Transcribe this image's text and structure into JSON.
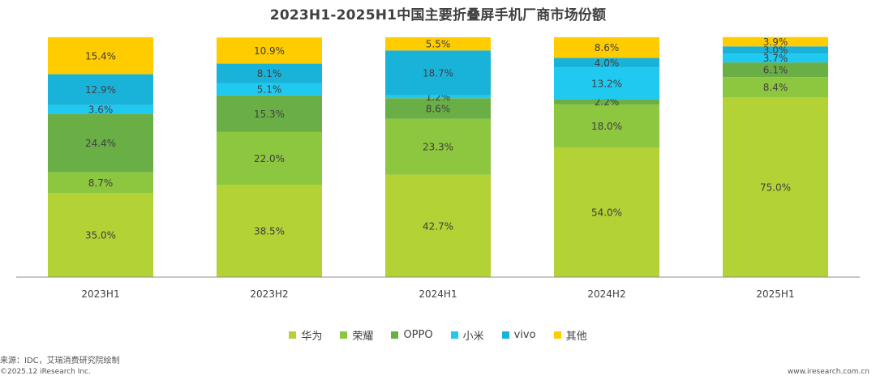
{
  "chart_data": {
    "type": "bar",
    "stacked": true,
    "title": "2023H1-2025H1中国主要折叠屏手机厂商市场份额",
    "categories": [
      "2023H1",
      "2023H2",
      "2024H1",
      "2024H2",
      "2025H1"
    ],
    "series": [
      {
        "name": "华为",
        "color": "#B2D235",
        "values": [
          35.0,
          38.5,
          42.7,
          54.0,
          75.0
        ],
        "labels": [
          "35.0%",
          "38.5%",
          "42.7%",
          "54.0%",
          "75.0%"
        ]
      },
      {
        "name": "荣耀",
        "color": "#8DC63F",
        "values": [
          8.7,
          22.0,
          23.3,
          18.0,
          8.4
        ],
        "labels": [
          "8.7%",
          "22.0%",
          "23.3%",
          "18.0%",
          "8.4%"
        ]
      },
      {
        "name": "OPPO",
        "color": "#6AAF46",
        "values": [
          24.4,
          15.3,
          8.6,
          2.2,
          6.1
        ],
        "labels": [
          "24.4%",
          "15.3%",
          "8.6%",
          "2.2%",
          "6.1%"
        ]
      },
      {
        "name": "小米",
        "color": "#1FC9EF",
        "values": [
          3.6,
          5.1,
          1.2,
          13.2,
          3.7
        ],
        "labels": [
          "3.6%",
          "5.1%",
          "1.2%",
          "13.2%",
          "3.7%"
        ]
      },
      {
        "name": "vivo",
        "color": "#19B3DA",
        "values": [
          12.9,
          8.1,
          18.7,
          4.0,
          3.0
        ],
        "labels": [
          "12.9%",
          "8.1%",
          "18.7%",
          "4.0%",
          "3.0%"
        ]
      },
      {
        "name": "其他",
        "color": "#FFCC00",
        "values": [
          15.4,
          10.9,
          5.5,
          8.6,
          3.9
        ],
        "labels": [
          "15.4%",
          "10.9%",
          "5.5%",
          "8.6%",
          "3.9%"
        ]
      }
    ],
    "ylim": [
      0,
      100
    ],
    "grid": false,
    "legend_position": "bottom"
  },
  "footer": {
    "source": "来源：IDC，艾瑞消费研究院绘制",
    "copyright": "©2025.12 iResearch Inc.",
    "url": "www.iresearch.com.cn"
  }
}
